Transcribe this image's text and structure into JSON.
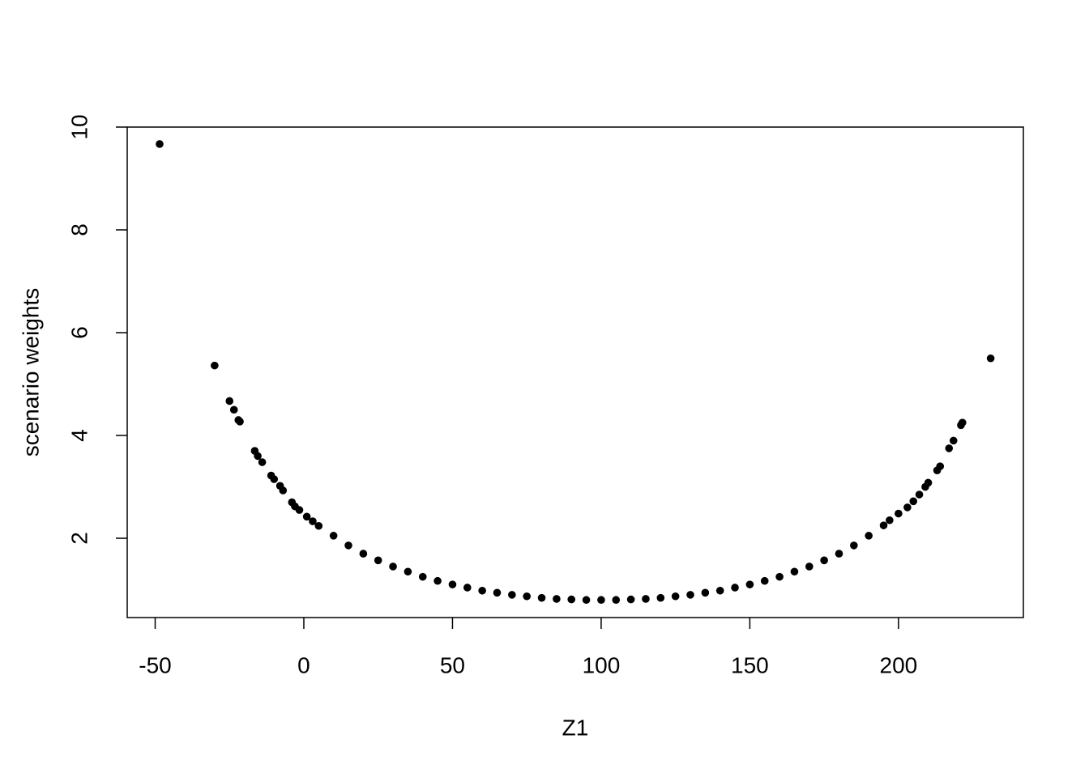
{
  "chart_data": {
    "type": "scatter",
    "x_label": "Z1",
    "y_label": "scenario weights",
    "x": [
      -48.5,
      -30,
      -25,
      -23.5,
      -22,
      -21.5,
      -16.5,
      -15.5,
      -14,
      -11,
      -10,
      -8,
      -7,
      -4,
      -3,
      -1.5,
      1,
      3,
      5,
      10,
      15,
      20,
      25,
      30,
      35,
      40,
      45,
      50,
      55,
      60,
      65,
      70,
      75,
      80,
      85,
      90,
      95,
      100,
      105,
      110,
      115,
      120,
      125,
      130,
      135,
      140,
      145,
      150,
      155,
      160,
      165,
      170,
      175,
      180,
      185,
      190,
      195,
      197,
      200,
      203,
      205,
      207,
      209,
      210,
      213,
      214,
      217,
      218.5,
      221,
      221.5,
      231
    ],
    "values": [
      9.67,
      5.36,
      4.67,
      4.5,
      4.3,
      4.27,
      3.7,
      3.6,
      3.48,
      3.22,
      3.15,
      3.02,
      2.93,
      2.7,
      2.62,
      2.55,
      2.42,
      2.33,
      2.24,
      2.05,
      1.86,
      1.7,
      1.57,
      1.45,
      1.35,
      1.25,
      1.17,
      1.1,
      1.04,
      0.98,
      0.94,
      0.9,
      0.87,
      0.84,
      0.82,
      0.81,
      0.8,
      0.8,
      0.8,
      0.81,
      0.82,
      0.84,
      0.87,
      0.9,
      0.94,
      0.98,
      1.04,
      1.1,
      1.17,
      1.25,
      1.35,
      1.45,
      1.57,
      1.7,
      1.86,
      2.05,
      2.25,
      2.35,
      2.48,
      2.6,
      2.72,
      2.85,
      3.0,
      3.08,
      3.32,
      3.4,
      3.75,
      3.9,
      4.2,
      4.25,
      5.5
    ],
    "color": "#000000",
    "xlim": [
      -59.4,
      242.0
    ],
    "xticks": [
      -50,
      0,
      50,
      100,
      150,
      200
    ],
    "ylim": [
      0.457,
      10
    ],
    "yticks": [
      2,
      4,
      6,
      8,
      10
    ],
    "grid": false
  }
}
